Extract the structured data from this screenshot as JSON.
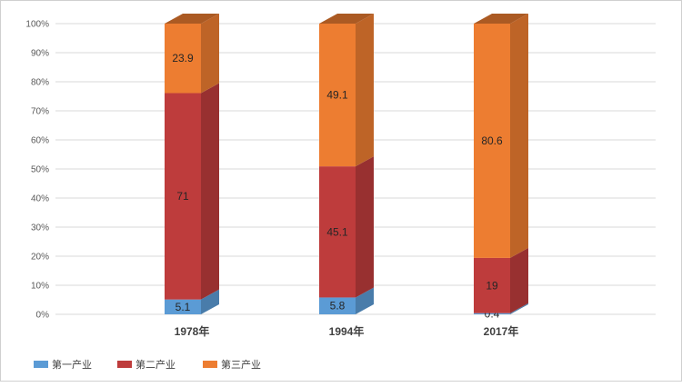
{
  "chart_data": {
    "type": "bar",
    "stacked": true,
    "percent_stacked": true,
    "categories": [
      "1978年",
      "1994年",
      "2017年"
    ],
    "series": [
      {
        "name": "第一产业",
        "values": [
          5.1,
          5.8,
          0.4
        ],
        "color": "#5b9bd5"
      },
      {
        "name": "第二产业",
        "values": [
          71,
          45.1,
          19
        ],
        "color": "#be3c3c"
      },
      {
        "name": "第三产业",
        "values": [
          23.9,
          49.1,
          80.6
        ],
        "color": "#ed7d31"
      }
    ],
    "ylim": [
      0,
      100
    ],
    "yticks": [
      "0%",
      "10%",
      "20%",
      "30%",
      "40%",
      "50%",
      "60%",
      "70%",
      "80%",
      "90%",
      "100%"
    ],
    "grid": true,
    "legend": "bottom-left",
    "title": "",
    "xlabel": "",
    "ylabel": ""
  }
}
